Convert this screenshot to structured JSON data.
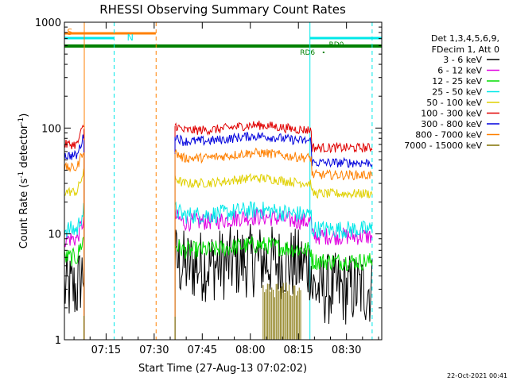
{
  "chart_data": {
    "type": "line",
    "title": "RHESSI Observing Summary Count Rates",
    "xlabel": "Start Time (27-Aug-13 07:02:02)",
    "ylabel_main": "Count Rate (s",
    "ylabel_sup1": "-1",
    "ylabel_mid": " detector",
    "ylabel_sup2": "-1",
    "ylabel_end": ")",
    "x_range_minutes": [
      0,
      99
    ],
    "ylim": [
      1,
      1000
    ],
    "yscale": "log",
    "x_ticks": [
      {
        "label": "07:15",
        "minute": 13
      },
      {
        "label": "07:30",
        "minute": 28
      },
      {
        "label": "07:45",
        "minute": 43
      },
      {
        "label": "08:00",
        "minute": 58
      },
      {
        "label": "08:15",
        "minute": 73
      },
      {
        "label": "08:30",
        "minute": 88
      }
    ],
    "y_ticks": [
      {
        "label": "1",
        "value": 1
      },
      {
        "label": "10",
        "value": 10
      },
      {
        "label": "100",
        "value": 100
      },
      {
        "label": "1000",
        "value": 1000
      }
    ],
    "legend_header": [
      "Det 1,3,4,5,6,9,",
      "FDecim 1, Att 0"
    ],
    "series": [
      {
        "name": "3 - 6 keV",
        "color": "#000000",
        "pre": 3,
        "post": 5,
        "end": 3
      },
      {
        "name": "6 - 12 keV",
        "color": "#e000e0",
        "pre": 9,
        "post": 13,
        "end": 9.5
      },
      {
        "name": "12 - 25 keV",
        "color": "#00dd00",
        "pre": 6,
        "post": 7,
        "end": 5.5
      },
      {
        "name": "25 - 50 keV",
        "color": "#00e8e8",
        "pre": 11,
        "post": 15,
        "end": 11
      },
      {
        "name": "50 - 100 keV",
        "color": "#e0d000",
        "pre": 25,
        "post": 30,
        "end": 24
      },
      {
        "name": "100 - 300 keV",
        "color": "#e00000",
        "pre": 70,
        "post": 95,
        "end": 65
      },
      {
        "name": "300 - 800 keV",
        "color": "#0000dd",
        "pre": 55,
        "post": 75,
        "end": 47
      },
      {
        "name": "800 - 7000 keV",
        "color": "#ff8000",
        "pre": 42,
        "post": 52,
        "end": 36
      },
      {
        "name": "7000 - 15000 keV",
        "color": "#807000",
        "pre": 1.2,
        "post": 1.5,
        "end": 1
      }
    ],
    "flags": [
      {
        "label": "S",
        "color": "#ff8000"
      },
      {
        "label": "N",
        "color": "#00e8e8"
      },
      {
        "label": "RD0",
        "color": "#008000"
      },
      {
        "label": "RD6",
        "color": "#008000"
      }
    ],
    "footer_timestamp": "22-Oct-2021 00:41"
  }
}
